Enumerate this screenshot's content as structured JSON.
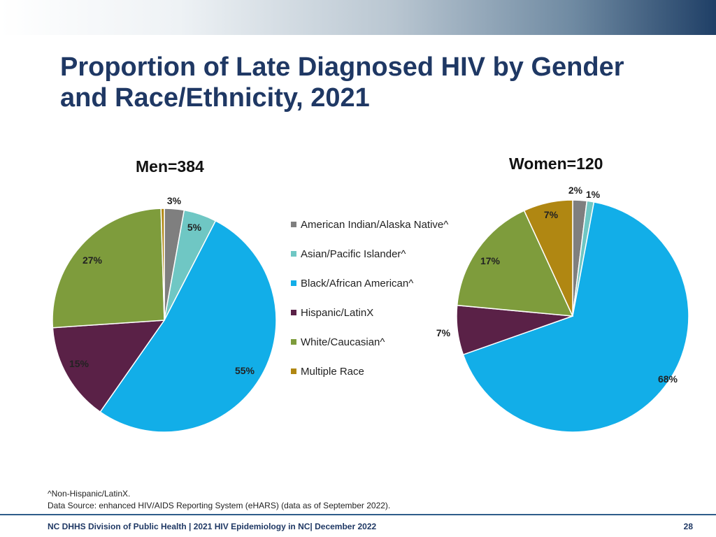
{
  "slide": {
    "title": "Proportion of Late Diagnosed HIV by Gender and Race/Ethnicity, 2021",
    "footnote_1": "^Non-Hispanic/LatinX.",
    "footnote_2": "Data Source: enhanced HIV/AIDS Reporting System (eHARS) (data as of September 2022).",
    "footer": "NC DHHS Division of Public Health | 2021 HIV Epidemiology in NC| December 2022",
    "page_number": "28"
  },
  "legend": {
    "items": [
      {
        "label": "American Indian/Alaska Native^",
        "color": "#7f7f7f"
      },
      {
        "label": "Asian/Pacific Islander^",
        "color": "#6fc7c4"
      },
      {
        "label": "Black/African American^",
        "color": "#12aee8"
      },
      {
        "label": "Hispanic/LatinX",
        "color": "#5a2147"
      },
      {
        "label": "White/Caucasian^",
        "color": "#7e9c3c"
      },
      {
        "label": "Multiple Race",
        "color": "#b08712"
      }
    ]
  },
  "chart_data": [
    {
      "type": "pie",
      "title": "Men=384",
      "categories": [
        "American Indian/Alaska Native^",
        "Asian/Pacific Islander^",
        "Black/African American^",
        "Hispanic/LatinX",
        "White/Caucasian^",
        "Multiple Race"
      ],
      "values": [
        3,
        5,
        55,
        15,
        27,
        0.5
      ],
      "labels": [
        "3%",
        "5%",
        "55%",
        "15%",
        "27%",
        ""
      ],
      "colors": [
        "#7f7f7f",
        "#6fc7c4",
        "#12aee8",
        "#5a2147",
        "#7e9c3c",
        "#b08712"
      ]
    },
    {
      "type": "pie",
      "title": "Women=120",
      "categories": [
        "American Indian/Alaska Native^",
        "Asian/Pacific Islander^",
        "Black/African American^",
        "Hispanic/LatinX",
        "White/Caucasian^",
        "Multiple Race"
      ],
      "values": [
        2,
        1,
        68,
        7,
        17,
        7
      ],
      "labels": [
        "2%",
        "1%",
        "68%",
        "7%",
        "17%",
        "7%"
      ],
      "colors": [
        "#7f7f7f",
        "#6fc7c4",
        "#12aee8",
        "#5a2147",
        "#7e9c3c",
        "#b08712"
      ]
    }
  ]
}
